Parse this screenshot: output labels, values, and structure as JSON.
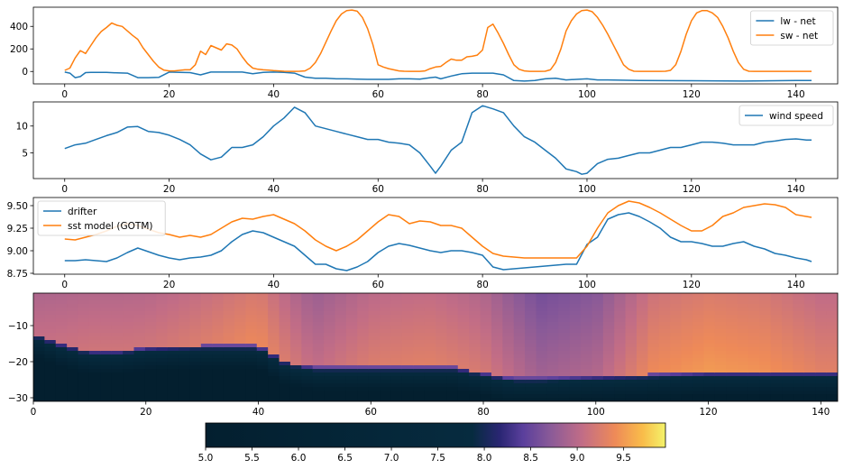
{
  "colors": {
    "blue": "#1f77b4",
    "orange": "#ff7f0e"
  },
  "chart_data": [
    {
      "type": "line",
      "xlim": [
        -6,
        148
      ],
      "ylim": [
        -110,
        570
      ],
      "x_ticks": [
        "0",
        "20",
        "40",
        "60",
        "80",
        "100",
        "120",
        "140"
      ],
      "x_tick_values": [
        0,
        20,
        40,
        60,
        80,
        100,
        120,
        140
      ],
      "y_ticks": [
        "0",
        "200",
        "400"
      ],
      "y_tick_values": [
        0,
        200,
        400
      ],
      "legend_position": "top-right",
      "series": [
        {
          "name": "lw - net",
          "color": "#1f77b4",
          "x": [
            0,
            1,
            2,
            3,
            4,
            5,
            8,
            10,
            12,
            14,
            16,
            18,
            20,
            22,
            24,
            26,
            28,
            30,
            34,
            36,
            38,
            40,
            42,
            44,
            46,
            48,
            50,
            52,
            54,
            56,
            58,
            60,
            62,
            64,
            66,
            68,
            70,
            71,
            72,
            74,
            76,
            78,
            80,
            82,
            84,
            86,
            88,
            90,
            92,
            94,
            96,
            98,
            100,
            102,
            104,
            110,
            120,
            130,
            140,
            143
          ],
          "y": [
            -5,
            -15,
            -55,
            -45,
            -10,
            -8,
            -8,
            -12,
            -15,
            -55,
            -55,
            -52,
            -5,
            -8,
            -10,
            -30,
            -5,
            -5,
            -5,
            -20,
            -8,
            -5,
            -8,
            -15,
            -50,
            -60,
            -60,
            -65,
            -65,
            -68,
            -70,
            -70,
            -70,
            -65,
            -65,
            -68,
            -55,
            -50,
            -65,
            -40,
            -20,
            -15,
            -15,
            -15,
            -30,
            -80,
            -85,
            -80,
            -65,
            -60,
            -75,
            -70,
            -65,
            -75,
            -75,
            -80,
            -82,
            -85,
            -80,
            -80
          ]
        },
        {
          "name": "sw - net",
          "color": "#ff7f0e",
          "x": [
            0,
            1,
            2,
            3,
            4,
            5,
            6,
            7,
            8,
            9,
            10,
            11,
            12,
            13,
            14,
            15,
            16,
            17,
            18,
            19,
            20,
            21,
            22,
            23,
            24,
            25,
            26,
            27,
            28,
            29,
            30,
            31,
            32,
            33,
            34,
            35,
            36,
            37,
            38,
            39,
            40,
            41,
            42,
            43,
            44,
            45,
            46,
            47,
            48,
            49,
            50,
            51,
            52,
            53,
            54,
            55,
            56,
            57,
            58,
            59,
            60,
            61,
            62,
            63,
            64,
            65,
            66,
            67,
            68,
            69,
            70,
            71,
            72,
            73,
            74,
            75,
            76,
            77,
            78,
            79,
            80,
            81,
            82,
            83,
            84,
            85,
            86,
            87,
            88,
            89,
            90,
            91,
            92,
            93,
            94,
            95,
            96,
            97,
            98,
            99,
            100,
            101,
            102,
            103,
            104,
            105,
            106,
            107,
            108,
            109,
            110,
            111,
            112,
            113,
            114,
            115,
            116,
            117,
            118,
            119,
            120,
            121,
            122,
            123,
            124,
            125,
            126,
            127,
            128,
            129,
            130,
            131,
            132,
            133,
            134,
            135,
            136,
            137,
            138,
            139,
            140,
            141,
            142,
            143
          ],
          "y": [
            10,
            30,
            120,
            185,
            160,
            230,
            300,
            355,
            390,
            430,
            410,
            400,
            360,
            320,
            285,
            210,
            150,
            90,
            40,
            12,
            5,
            5,
            10,
            15,
            15,
            60,
            180,
            150,
            230,
            210,
            190,
            245,
            235,
            200,
            130,
            70,
            30,
            20,
            15,
            12,
            8,
            5,
            2,
            1,
            1,
            2,
            5,
            30,
            80,
            160,
            260,
            360,
            450,
            510,
            540,
            545,
            535,
            480,
            380,
            240,
            60,
            40,
            25,
            15,
            5,
            2,
            1,
            1,
            1,
            5,
            25,
            40,
            45,
            80,
            110,
            100,
            100,
            130,
            135,
            145,
            190,
            390,
            420,
            340,
            250,
            150,
            60,
            20,
            5,
            1,
            1,
            1,
            2,
            15,
            80,
            200,
            360,
            450,
            510,
            540,
            545,
            530,
            480,
            410,
            330,
            240,
            150,
            60,
            20,
            2,
            1,
            1,
            1,
            1,
            1,
            2,
            10,
            60,
            180,
            330,
            450,
            520,
            540,
            540,
            520,
            480,
            400,
            300,
            180,
            80,
            20,
            2,
            1,
            1,
            1,
            1,
            1,
            1,
            1,
            1,
            1,
            1,
            1,
            1
          ]
        }
      ]
    },
    {
      "type": "line",
      "xlim": [
        -6,
        148
      ],
      "ylim": [
        0.2,
        14.5
      ],
      "x_ticks": [
        "0",
        "20",
        "40",
        "60",
        "80",
        "100",
        "120",
        "140"
      ],
      "x_tick_values": [
        0,
        20,
        40,
        60,
        80,
        100,
        120,
        140
      ],
      "y_ticks": [
        "5",
        "10"
      ],
      "y_tick_values": [
        5,
        10
      ],
      "legend_position": "top-right",
      "series": [
        {
          "name": "wind speed",
          "color": "#1f77b4",
          "x": [
            0,
            2,
            4,
            6,
            8,
            10,
            12,
            14,
            16,
            18,
            20,
            22,
            24,
            26,
            28,
            30,
            32,
            34,
            36,
            38,
            40,
            42,
            44,
            46,
            48,
            50,
            52,
            54,
            56,
            58,
            60,
            62,
            64,
            66,
            68,
            70,
            71,
            72,
            74,
            76,
            78,
            80,
            82,
            84,
            86,
            88,
            90,
            92,
            94,
            96,
            98,
            99,
            100,
            102,
            104,
            106,
            108,
            110,
            112,
            114,
            116,
            118,
            120,
            122,
            124,
            126,
            128,
            130,
            132,
            134,
            136,
            138,
            140,
            142,
            143
          ],
          "y": [
            5.8,
            6.5,
            6.8,
            7.5,
            8.2,
            8.8,
            9.8,
            9.9,
            9.0,
            8.8,
            8.3,
            7.5,
            6.5,
            4.8,
            3.7,
            4.2,
            6.0,
            6.0,
            6.5,
            8.0,
            10.0,
            11.5,
            13.5,
            12.5,
            10.0,
            9.5,
            9.0,
            8.5,
            8.0,
            7.5,
            7.5,
            7.0,
            6.8,
            6.5,
            5.0,
            2.5,
            1.2,
            2.5,
            5.5,
            7.0,
            12.5,
            13.8,
            13.2,
            12.5,
            10.0,
            8.0,
            7.0,
            5.5,
            4.0,
            2.0,
            1.5,
            1.0,
            1.2,
            3.0,
            3.8,
            4.0,
            4.5,
            5.0,
            5.0,
            5.5,
            6.0,
            6.0,
            6.5,
            7.0,
            7.0,
            6.8,
            6.5,
            6.5,
            6.5,
            7.0,
            7.2,
            7.5,
            7.6,
            7.4,
            7.4
          ]
        }
      ]
    },
    {
      "type": "line",
      "xlim": [
        -6,
        148
      ],
      "ylim": [
        8.74,
        9.59
      ],
      "x_ticks": [
        "0",
        "20",
        "40",
        "60",
        "80",
        "100",
        "120",
        "140"
      ],
      "x_tick_values": [
        0,
        20,
        40,
        60,
        80,
        100,
        120,
        140
      ],
      "y_ticks": [
        "8.75",
        "9.00",
        "9.25",
        "9.50"
      ],
      "y_tick_values": [
        8.75,
        9.0,
        9.25,
        9.5
      ],
      "legend_position": "top-left",
      "series": [
        {
          "name": "drifter",
          "color": "#1f77b4",
          "x": [
            0,
            2,
            4,
            6,
            8,
            10,
            12,
            14,
            16,
            18,
            20,
            22,
            24,
            26,
            28,
            30,
            32,
            34,
            36,
            38,
            40,
            42,
            44,
            46,
            48,
            50,
            52,
            54,
            56,
            58,
            60,
            62,
            64,
            66,
            68,
            70,
            72,
            74,
            76,
            78,
            80,
            82,
            84,
            86,
            88,
            90,
            92,
            94,
            96,
            98,
            100,
            102,
            104,
            106,
            108,
            110,
            112,
            114,
            116,
            118,
            120,
            122,
            124,
            126,
            128,
            130,
            132,
            134,
            136,
            138,
            140,
            142,
            143
          ],
          "y": [
            8.89,
            8.89,
            8.9,
            8.89,
            8.88,
            8.92,
            8.98,
            9.03,
            8.99,
            8.95,
            8.92,
            8.9,
            8.92,
            8.93,
            8.95,
            9.0,
            9.1,
            9.18,
            9.22,
            9.2,
            9.15,
            9.1,
            9.05,
            8.95,
            8.85,
            8.85,
            8.8,
            8.78,
            8.82,
            8.88,
            8.98,
            9.05,
            9.08,
            9.06,
            9.03,
            9.0,
            8.98,
            9.0,
            9.0,
            8.98,
            8.95,
            8.82,
            8.79,
            8.8,
            8.81,
            8.82,
            8.83,
            8.84,
            8.85,
            8.85,
            9.07,
            9.15,
            9.35,
            9.4,
            9.42,
            9.38,
            9.32,
            9.25,
            9.15,
            9.1,
            9.1,
            9.08,
            9.05,
            9.05,
            9.08,
            9.1,
            9.05,
            9.02,
            8.97,
            8.95,
            8.92,
            8.9,
            8.88
          ]
        },
        {
          "name": "sst model (GOTM)",
          "color": "#ff7f0e",
          "x": [
            0,
            2,
            4,
            6,
            8,
            10,
            12,
            14,
            16,
            18,
            20,
            22,
            24,
            26,
            28,
            30,
            32,
            34,
            36,
            38,
            40,
            42,
            44,
            46,
            48,
            50,
            52,
            54,
            56,
            58,
            60,
            62,
            64,
            66,
            68,
            70,
            72,
            74,
            76,
            78,
            80,
            82,
            84,
            86,
            88,
            90,
            92,
            94,
            96,
            98,
            100,
            102,
            104,
            106,
            108,
            110,
            112,
            114,
            116,
            118,
            120,
            122,
            124,
            126,
            128,
            130,
            132,
            134,
            136,
            138,
            140,
            142,
            143
          ],
          "y": [
            9.13,
            9.12,
            9.15,
            9.18,
            9.22,
            9.27,
            9.3,
            9.28,
            9.24,
            9.2,
            9.18,
            9.15,
            9.17,
            9.15,
            9.18,
            9.25,
            9.32,
            9.36,
            9.35,
            9.38,
            9.4,
            9.35,
            9.3,
            9.22,
            9.12,
            9.05,
            9.0,
            9.05,
            9.12,
            9.22,
            9.32,
            9.4,
            9.38,
            9.3,
            9.33,
            9.32,
            9.28,
            9.28,
            9.25,
            9.15,
            9.05,
            8.97,
            8.94,
            8.93,
            8.92,
            8.92,
            8.92,
            8.92,
            8.92,
            8.92,
            9.05,
            9.25,
            9.42,
            9.5,
            9.55,
            9.53,
            9.48,
            9.42,
            9.35,
            9.28,
            9.22,
            9.22,
            9.28,
            9.38,
            9.42,
            9.48,
            9.5,
            9.52,
            9.51,
            9.48,
            9.4,
            9.38,
            9.37
          ]
        }
      ]
    },
    {
      "type": "heatmap",
      "xlim": [
        0,
        143
      ],
      "ylim": [
        -31,
        -1
      ],
      "x_ticks": [
        "0",
        "20",
        "40",
        "60",
        "80",
        "100",
        "120",
        "140"
      ],
      "x_tick_values": [
        0,
        20,
        40,
        60,
        80,
        100,
        120,
        140
      ],
      "y_ticks": [
        "−10",
        "−20",
        "−30"
      ],
      "y_tick_values": [
        -10,
        -20,
        -30
      ],
      "colorbar": {
        "ticks": [
          "5.0",
          "5.5",
          "6.0",
          "6.5",
          "7.0",
          "7.5",
          "8.0",
          "8.5",
          "9.0",
          "9.5"
        ],
        "tick_values": [
          5.0,
          5.5,
          6.0,
          6.5,
          7.0,
          7.5,
          8.0,
          8.5,
          9.0,
          9.5
        ],
        "range": [
          5.0,
          9.95
        ]
      },
      "mixed_layer_depth": {
        "x": [
          0,
          5,
          10,
          15,
          20,
          30,
          40,
          45,
          50,
          60,
          70,
          75,
          80,
          85,
          90,
          100,
          110,
          120,
          130,
          140,
          143
        ],
        "y": [
          -12,
          -15,
          -17,
          -17,
          -16,
          -15.5,
          -15.5,
          -20,
          -21.5,
          -21.5,
          -21.5,
          -21.5,
          -23,
          -24.5,
          -24.5,
          -24,
          -23.5,
          -23,
          -23,
          -23,
          -23
        ]
      },
      "surface_temperature": {
        "x": [
          0,
          10,
          20,
          30,
          40,
          50,
          60,
          70,
          80,
          90,
          100,
          110,
          120,
          130,
          140,
          143
        ],
        "y": [
          9.1,
          9.2,
          9.2,
          9.3,
          9.45,
          9.1,
          9.3,
          9.35,
          9.25,
          8.9,
          9.0,
          9.45,
          9.55,
          9.5,
          9.35,
          9.35
        ]
      }
    }
  ]
}
